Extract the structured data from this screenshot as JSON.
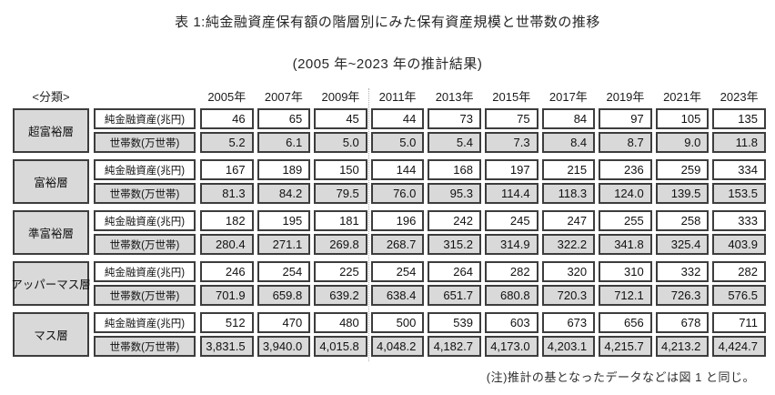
{
  "title": "表 1:純金融資産保有額の階層別にみた保有資産規模と世帯数の推移",
  "subtitle": "(2005 年~2023 年の推計結果)",
  "note": "(注)推計の基となったデータなどは図 1 と同じ。",
  "colors": {
    "cell_gray": "#d9d9d9",
    "border": "#3d3d3d",
    "background": "#ffffff"
  },
  "table": {
    "classification_header": "<分類>",
    "years": [
      "2005年",
      "2007年",
      "2009年",
      "2011年",
      "2013年",
      "2015年",
      "2017年",
      "2019年",
      "2021年",
      "2023年"
    ],
    "row_labels": {
      "assets": "純金融資産(兆円)",
      "households": "世帯数(万世帯)"
    },
    "groups": [
      {
        "tier": "超富裕層",
        "assets": [
          "46",
          "65",
          "45",
          "44",
          "73",
          "75",
          "84",
          "97",
          "105",
          "135"
        ],
        "households": [
          "5.2",
          "6.1",
          "5.0",
          "5.0",
          "5.4",
          "7.3",
          "8.4",
          "8.7",
          "9.0",
          "11.8"
        ]
      },
      {
        "tier": "富裕層",
        "assets": [
          "167",
          "189",
          "150",
          "144",
          "168",
          "197",
          "215",
          "236",
          "259",
          "334"
        ],
        "households": [
          "81.3",
          "84.2",
          "79.5",
          "76.0",
          "95.3",
          "114.4",
          "118.3",
          "124.0",
          "139.5",
          "153.5"
        ]
      },
      {
        "tier": "準富裕層",
        "assets": [
          "182",
          "195",
          "181",
          "196",
          "242",
          "245",
          "247",
          "255",
          "258",
          "333"
        ],
        "households": [
          "280.4",
          "271.1",
          "269.8",
          "268.7",
          "315.2",
          "314.9",
          "322.2",
          "341.8",
          "325.4",
          "403.9"
        ]
      },
      {
        "tier": "アッパーマス層",
        "assets": [
          "246",
          "254",
          "225",
          "254",
          "264",
          "282",
          "320",
          "310",
          "332",
          "282"
        ],
        "households": [
          "701.9",
          "659.8",
          "639.2",
          "638.4",
          "651.7",
          "680.8",
          "720.3",
          "712.1",
          "726.3",
          "576.5"
        ]
      },
      {
        "tier": "マス層",
        "assets": [
          "512",
          "470",
          "480",
          "500",
          "539",
          "603",
          "673",
          "656",
          "678",
          "711"
        ],
        "households": [
          "3,831.5",
          "3,940.0",
          "4,015.8",
          "4,048.2",
          "4,182.7",
          "4,173.0",
          "4,203.1",
          "4,215.7",
          "4,213.2",
          "4,424.7"
        ]
      }
    ]
  }
}
